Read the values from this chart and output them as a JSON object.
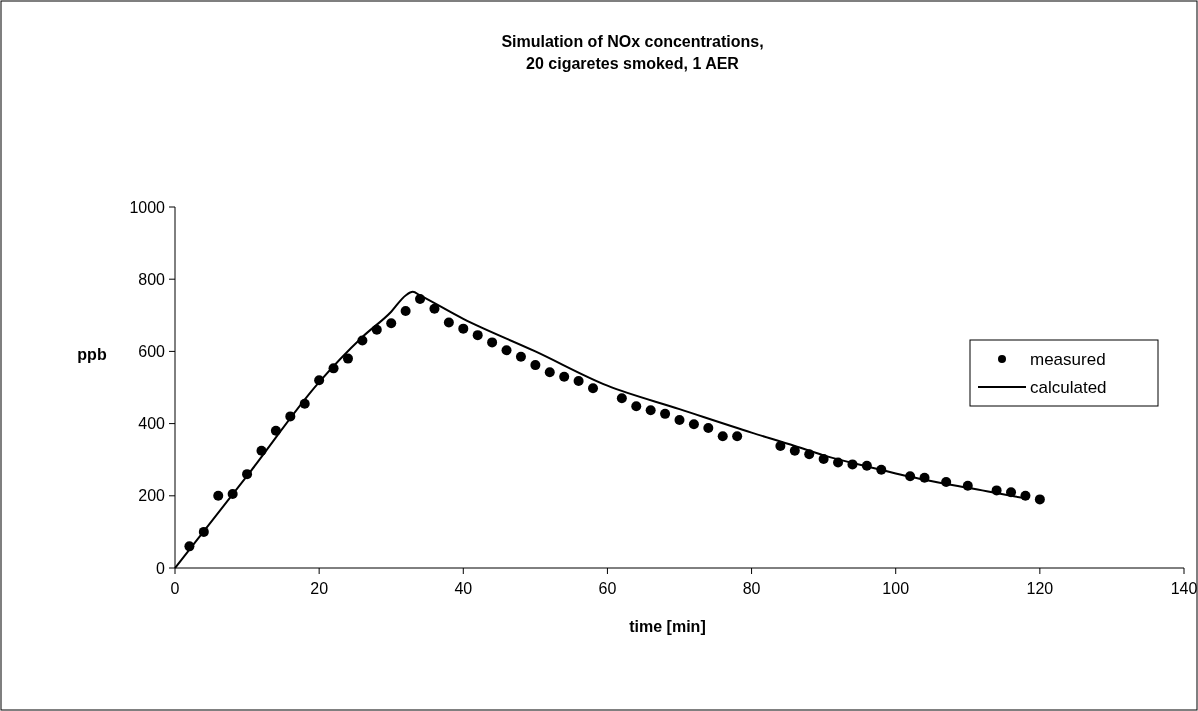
{
  "chart_data": {
    "type": "scatter",
    "title": "Simulation of NOx concentrations,\n20 cigaretes smoked, 1 AER",
    "xlabel": "time [min]",
    "ylabel": "ppb",
    "xlim": [
      0,
      140
    ],
    "xticks": [
      0,
      20,
      40,
      60,
      80,
      100,
      120,
      140
    ],
    "ylim": [
      0,
      1000
    ],
    "yticks": [
      0,
      200,
      400,
      600,
      800,
      1000
    ],
    "grid": false,
    "legend": "right",
    "series": [
      {
        "name": "measured",
        "marker": "circle",
        "color": "#000000",
        "x": [
          2,
          4,
          6,
          8,
          10,
          12,
          14,
          16,
          18,
          20,
          22,
          24,
          26,
          28,
          30,
          32,
          34,
          36,
          38,
          40,
          42,
          44,
          46,
          48,
          50,
          52,
          54,
          56,
          58,
          62,
          64,
          66,
          68,
          70,
          72,
          74,
          76,
          78,
          84,
          86,
          88,
          90,
          92,
          94,
          96,
          98,
          102,
          104,
          107,
          110,
          114,
          116,
          118,
          120
        ],
        "values": [
          60,
          100,
          200,
          205,
          260,
          325,
          380,
          420,
          455,
          520,
          553,
          580,
          630,
          660,
          678,
          712,
          745,
          718,
          680,
          663,
          645,
          625,
          603,
          585,
          562,
          542,
          530,
          518,
          498,
          470,
          448,
          437,
          427,
          410,
          398,
          388,
          365,
          365,
          338,
          325,
          315,
          302,
          292,
          287,
          283,
          272,
          254,
          250,
          238,
          228,
          215,
          210,
          200,
          190
        ]
      },
      {
        "name": "calculated",
        "type": "line",
        "marker": "none",
        "line_style": "solid",
        "color": "#000000",
        "x": [
          0,
          10,
          20,
          26,
          30,
          32,
          33,
          34,
          40,
          50,
          60,
          70,
          80,
          86,
          90,
          98,
          100,
          112,
          116,
          118
        ],
        "values": [
          0,
          255,
          515,
          640,
          710,
          755,
          765,
          755,
          690,
          600,
          505,
          440,
          375,
          338,
          312,
          272,
          262,
          215,
          200,
          193
        ]
      }
    ]
  }
}
